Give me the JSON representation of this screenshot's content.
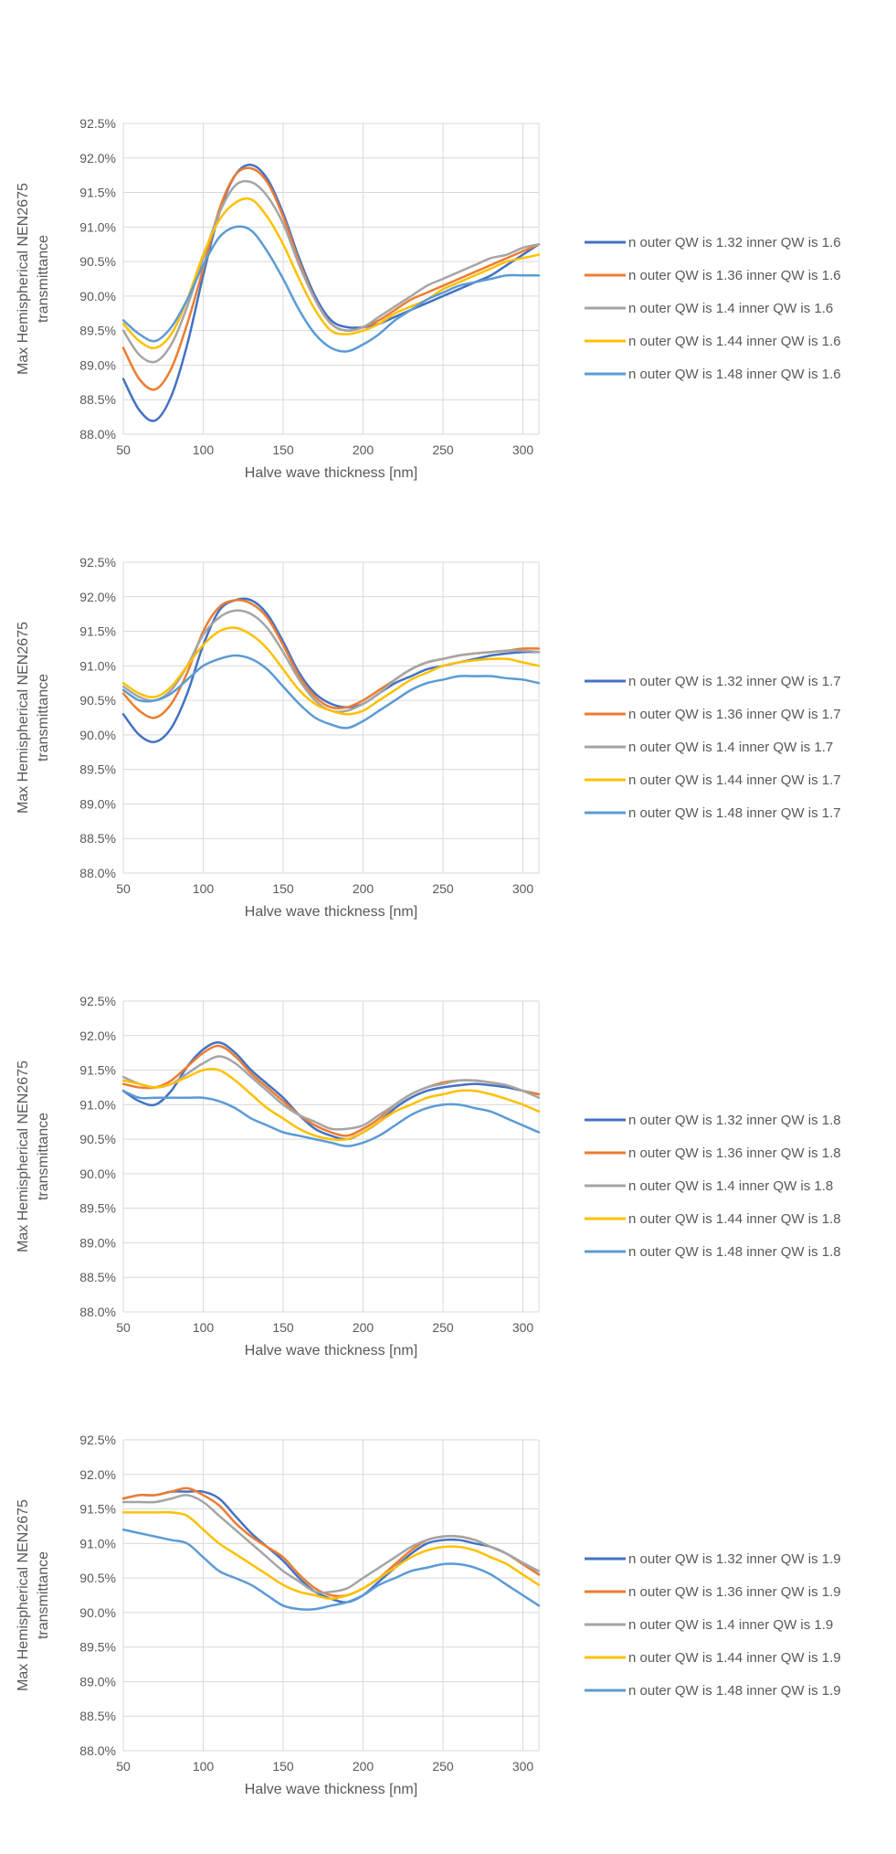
{
  "chart_data": [
    {
      "type": "line",
      "xlabel": "Halve wave thickness [nm]",
      "ylabel": [
        "Max Hemispherical NEN2675",
        "transmittance"
      ],
      "xlim": [
        50,
        310
      ],
      "ylim": [
        88.0,
        92.5
      ],
      "x_ticks": [
        "50",
        "100",
        "150",
        "200",
        "250",
        "300"
      ],
      "y_ticks": [
        "88.0%",
        "88.5%",
        "89.0%",
        "89.5%",
        "90.0%",
        "90.5%",
        "91.0%",
        "91.5%",
        "92.0%",
        "92.5%"
      ],
      "grid": true,
      "legend_position": "right",
      "x": [
        50,
        60,
        70,
        80,
        90,
        100,
        110,
        120,
        130,
        140,
        150,
        160,
        170,
        180,
        190,
        200,
        210,
        220,
        230,
        240,
        250,
        260,
        270,
        280,
        290,
        300,
        310
      ],
      "series": [
        {
          "name": "n outer QW is 1.32 inner QW is 1.6",
          "color": "#4472C4",
          "values": [
            88.8,
            88.35,
            88.2,
            88.55,
            89.3,
            90.3,
            91.2,
            91.75,
            91.9,
            91.7,
            91.2,
            90.55,
            90.0,
            89.65,
            89.55,
            89.55,
            89.6,
            89.7,
            89.8,
            89.9,
            90.0,
            90.1,
            90.2,
            90.3,
            90.45,
            90.6,
            90.75
          ]
        },
        {
          "name": "n outer QW is 1.36 inner QW is 1.6",
          "color": "#ED7D31",
          "values": [
            89.25,
            88.8,
            88.65,
            88.95,
            89.6,
            90.4,
            91.25,
            91.75,
            91.85,
            91.65,
            91.15,
            90.5,
            89.95,
            89.6,
            89.5,
            89.55,
            89.65,
            89.8,
            89.95,
            90.05,
            90.15,
            90.25,
            90.35,
            90.45,
            90.55,
            90.65,
            90.75
          ]
        },
        {
          "name": "n outer QW is 1.4 inner QW is 1.6",
          "color": "#A5A5A5",
          "values": [
            89.5,
            89.15,
            89.05,
            89.3,
            89.85,
            90.55,
            91.2,
            91.6,
            91.65,
            91.45,
            91.05,
            90.45,
            89.95,
            89.6,
            89.5,
            89.55,
            89.7,
            89.85,
            90.0,
            90.15,
            90.25,
            90.35,
            90.45,
            90.55,
            90.6,
            90.7,
            90.75
          ]
        },
        {
          "name": "n outer QW is 1.44 inner QW is 1.6",
          "color": "#FFC000",
          "values": [
            89.6,
            89.35,
            89.25,
            89.45,
            89.95,
            90.6,
            91.1,
            91.35,
            91.4,
            91.15,
            90.75,
            90.25,
            89.8,
            89.5,
            89.45,
            89.5,
            89.6,
            89.75,
            89.85,
            89.95,
            90.1,
            90.2,
            90.3,
            90.4,
            90.5,
            90.55,
            90.6
          ]
        },
        {
          "name": "n outer QW is 1.48 inner QW is 1.6",
          "color": "#5B9BD5",
          "values": [
            89.65,
            89.45,
            89.35,
            89.55,
            89.95,
            90.45,
            90.85,
            91.0,
            90.95,
            90.65,
            90.25,
            89.8,
            89.45,
            89.25,
            89.2,
            89.3,
            89.45,
            89.65,
            89.8,
            89.95,
            90.05,
            90.15,
            90.2,
            90.25,
            90.3,
            90.3,
            90.3
          ]
        }
      ]
    },
    {
      "type": "line",
      "xlabel": "Halve wave thickness [nm]",
      "ylabel": [
        "Max Hemispherical NEN2675",
        "transmittance"
      ],
      "xlim": [
        50,
        310
      ],
      "ylim": [
        88.0,
        92.5
      ],
      "x_ticks": [
        "50",
        "100",
        "150",
        "200",
        "250",
        "300"
      ],
      "y_ticks": [
        "88.0%",
        "88.5%",
        "89.0%",
        "89.5%",
        "90.0%",
        "90.5%",
        "91.0%",
        "91.5%",
        "92.0%",
        "92.5%"
      ],
      "grid": true,
      "legend_position": "right",
      "x": [
        50,
        60,
        70,
        80,
        90,
        100,
        110,
        120,
        130,
        140,
        150,
        160,
        170,
        180,
        190,
        200,
        210,
        220,
        230,
        240,
        250,
        260,
        270,
        280,
        290,
        300,
        310
      ],
      "series": [
        {
          "name": "n outer QW is 1.32 inner QW is 1.7",
          "color": "#4472C4",
          "values": [
            90.3,
            90.0,
            89.9,
            90.1,
            90.6,
            91.3,
            91.8,
            91.95,
            91.95,
            91.75,
            91.35,
            90.9,
            90.6,
            90.45,
            90.4,
            90.45,
            90.6,
            90.75,
            90.85,
            90.95,
            91.0,
            91.05,
            91.1,
            91.15,
            91.18,
            91.2,
            91.2
          ]
        },
        {
          "name": "n outer QW is 1.36 inner QW is 1.7",
          "color": "#ED7D31",
          "values": [
            90.6,
            90.35,
            90.25,
            90.45,
            90.9,
            91.5,
            91.85,
            91.95,
            91.9,
            91.7,
            91.3,
            90.85,
            90.55,
            90.4,
            90.4,
            90.5,
            90.65,
            90.8,
            90.95,
            91.05,
            91.1,
            91.15,
            91.18,
            91.2,
            91.22,
            91.25,
            91.25
          ]
        },
        {
          "name": "n outer QW is 1.4 inner QW is 1.7",
          "color": "#A5A5A5",
          "values": [
            90.7,
            90.55,
            90.5,
            90.65,
            91.0,
            91.45,
            91.7,
            91.8,
            91.75,
            91.55,
            91.2,
            90.8,
            90.5,
            90.35,
            90.35,
            90.45,
            90.6,
            90.8,
            90.95,
            91.05,
            91.1,
            91.15,
            91.18,
            91.2,
            91.22,
            91.22,
            91.2
          ]
        },
        {
          "name": "n outer QW is 1.44 inner QW is 1.7",
          "color": "#FFC000",
          "values": [
            90.75,
            90.6,
            90.55,
            90.7,
            91.0,
            91.3,
            91.5,
            91.55,
            91.45,
            91.25,
            90.95,
            90.65,
            90.45,
            90.35,
            90.3,
            90.35,
            90.5,
            90.65,
            90.8,
            90.9,
            91.0,
            91.05,
            91.08,
            91.1,
            91.1,
            91.05,
            91.0
          ]
        },
        {
          "name": "n outer QW is 1.48 inner QW is 1.7",
          "color": "#5B9BD5",
          "values": [
            90.65,
            90.5,
            90.5,
            90.6,
            90.8,
            91.0,
            91.1,
            91.15,
            91.1,
            90.95,
            90.7,
            90.45,
            90.25,
            90.15,
            90.1,
            90.2,
            90.35,
            90.5,
            90.65,
            90.75,
            90.8,
            90.85,
            90.85,
            90.85,
            90.82,
            90.8,
            90.75
          ]
        }
      ]
    },
    {
      "type": "line",
      "xlabel": "Halve wave thickness [nm]",
      "ylabel": [
        "Max Hemispherical NEN2675",
        "transmittance"
      ],
      "xlim": [
        50,
        310
      ],
      "ylim": [
        88.0,
        92.5
      ],
      "x_ticks": [
        "50",
        "100",
        "150",
        "200",
        "250",
        "300"
      ],
      "y_ticks": [
        "88.0%",
        "88.5%",
        "89.0%",
        "89.5%",
        "90.0%",
        "90.5%",
        "91.0%",
        "91.5%",
        "92.0%",
        "92.5%"
      ],
      "grid": true,
      "legend_position": "right",
      "x": [
        50,
        60,
        70,
        80,
        90,
        100,
        110,
        120,
        130,
        140,
        150,
        160,
        170,
        180,
        190,
        200,
        210,
        220,
        230,
        240,
        250,
        260,
        270,
        280,
        290,
        300,
        310
      ],
      "series": [
        {
          "name": "n outer QW is 1.32 inner QW is 1.8",
          "color": "#4472C4",
          "values": [
            91.2,
            91.05,
            91.0,
            91.2,
            91.55,
            91.8,
            91.9,
            91.75,
            91.5,
            91.3,
            91.1,
            90.85,
            90.65,
            90.55,
            90.5,
            90.6,
            90.75,
            90.95,
            91.1,
            91.2,
            91.25,
            91.28,
            91.3,
            91.28,
            91.25,
            91.2,
            91.15
          ]
        },
        {
          "name": "n outer QW is 1.36 inner QW is 1.8",
          "color": "#ED7D31",
          "values": [
            91.3,
            91.25,
            91.25,
            91.35,
            91.55,
            91.75,
            91.85,
            91.7,
            91.45,
            91.25,
            91.05,
            90.85,
            90.7,
            90.6,
            90.55,
            90.65,
            90.8,
            91.0,
            91.15,
            91.25,
            91.32,
            91.35,
            91.35,
            91.32,
            91.28,
            91.2,
            91.15
          ]
        },
        {
          "name": "n outer QW is 1.4 inner QW is 1.8",
          "color": "#A5A5A5",
          "values": [
            91.4,
            91.3,
            91.25,
            91.3,
            91.45,
            91.6,
            91.7,
            91.6,
            91.4,
            91.2,
            91.0,
            90.85,
            90.75,
            90.65,
            90.65,
            90.7,
            90.85,
            91.0,
            91.15,
            91.25,
            91.3,
            91.35,
            91.35,
            91.32,
            91.28,
            91.2,
            91.1
          ]
        },
        {
          "name": "n outer QW is 1.44 inner QW is 1.8",
          "color": "#FFC000",
          "values": [
            91.35,
            91.3,
            91.25,
            91.3,
            91.4,
            91.5,
            91.5,
            91.35,
            91.15,
            90.95,
            90.8,
            90.65,
            90.55,
            90.5,
            90.5,
            90.6,
            90.75,
            90.9,
            91.0,
            91.1,
            91.15,
            91.2,
            91.2,
            91.15,
            91.08,
            91.0,
            90.9
          ]
        },
        {
          "name": "n outer QW is 1.48 inner QW is 1.8",
          "color": "#5B9BD5",
          "values": [
            91.2,
            91.1,
            91.1,
            91.1,
            91.1,
            91.1,
            91.05,
            90.95,
            90.8,
            90.7,
            90.6,
            90.55,
            90.5,
            90.45,
            90.4,
            90.45,
            90.55,
            90.7,
            90.85,
            90.95,
            91.0,
            91.0,
            90.95,
            90.9,
            90.8,
            90.7,
            90.6
          ]
        }
      ]
    },
    {
      "type": "line",
      "xlabel": "Halve wave thickness [nm]",
      "ylabel": [
        "Max Hemispherical NEN2675",
        "transmittance"
      ],
      "xlim": [
        50,
        310
      ],
      "ylim": [
        88.0,
        92.5
      ],
      "x_ticks": [
        "50",
        "100",
        "150",
        "200",
        "250",
        "300"
      ],
      "y_ticks": [
        "88.0%",
        "88.5%",
        "89.0%",
        "89.5%",
        "90.0%",
        "90.5%",
        "91.0%",
        "91.5%",
        "92.0%",
        "92.5%"
      ],
      "grid": true,
      "legend_position": "right",
      "x": [
        50,
        60,
        70,
        80,
        90,
        100,
        110,
        120,
        130,
        140,
        150,
        160,
        170,
        180,
        190,
        200,
        210,
        220,
        230,
        240,
        250,
        260,
        270,
        280,
        290,
        300,
        310
      ],
      "series": [
        {
          "name": "n outer QW is 1.32 inner QW is 1.9",
          "color": "#4472C4",
          "values": [
            91.65,
            91.7,
            91.7,
            91.75,
            91.75,
            91.75,
            91.65,
            91.4,
            91.15,
            90.95,
            90.75,
            90.5,
            90.3,
            90.2,
            90.15,
            90.25,
            90.45,
            90.65,
            90.85,
            91.0,
            91.05,
            91.05,
            91.0,
            90.95,
            90.85,
            90.7,
            90.55
          ]
        },
        {
          "name": "n outer QW is 1.36 inner QW is 1.9",
          "color": "#ED7D31",
          "values": [
            91.65,
            91.7,
            91.7,
            91.75,
            91.8,
            91.7,
            91.55,
            91.3,
            91.1,
            90.95,
            90.8,
            90.55,
            90.35,
            90.25,
            90.25,
            90.35,
            90.5,
            90.7,
            90.9,
            91.05,
            91.1,
            91.1,
            91.05,
            90.95,
            90.85,
            90.7,
            90.55
          ]
        },
        {
          "name": "n outer QW is 1.4 inner QW is 1.9",
          "color": "#A5A5A5",
          "values": [
            91.6,
            91.6,
            91.6,
            91.65,
            91.7,
            91.6,
            91.4,
            91.2,
            91.0,
            90.8,
            90.6,
            90.45,
            90.3,
            90.3,
            90.35,
            90.5,
            90.65,
            90.8,
            90.95,
            91.05,
            91.1,
            91.1,
            91.05,
            90.95,
            90.85,
            90.72,
            90.6
          ]
        },
        {
          "name": "n outer QW is 1.44 inner QW is 1.9",
          "color": "#FFC000",
          "values": [
            91.45,
            91.45,
            91.45,
            91.45,
            91.4,
            91.2,
            91.0,
            90.85,
            90.7,
            90.55,
            90.4,
            90.3,
            90.25,
            90.2,
            90.25,
            90.35,
            90.5,
            90.65,
            90.8,
            90.9,
            90.95,
            90.95,
            90.9,
            90.8,
            90.7,
            90.55,
            90.4
          ]
        },
        {
          "name": "n outer QW is 1.48 inner QW is 1.9",
          "color": "#5B9BD5",
          "values": [
            91.2,
            91.15,
            91.1,
            91.05,
            91.0,
            90.8,
            90.6,
            90.5,
            90.4,
            90.25,
            90.1,
            90.05,
            90.05,
            90.1,
            90.15,
            90.25,
            90.4,
            90.5,
            90.6,
            90.65,
            90.7,
            90.7,
            90.65,
            90.55,
            90.4,
            90.25,
            90.1
          ]
        }
      ]
    }
  ]
}
